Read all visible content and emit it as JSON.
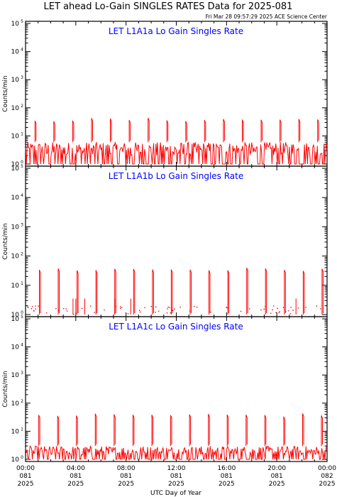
{
  "page": {
    "title": "LET ahead Lo-Gain SINGLES RATES Data for 2025-081",
    "timestamp": "Fri Mar 28 09:57:29 2025 ACE Science Center",
    "xlabel": "UTC Day of Year"
  },
  "colors": {
    "data": "#ff0000",
    "panel_title": "#0000ff",
    "axes": "#000000"
  },
  "chart_data": [
    {
      "type": "line",
      "title": "LET L1A1a Lo Gain Singles Rate",
      "ylabel": "Counts/min",
      "yscale": "log",
      "ylim": [
        1,
        100000
      ],
      "yticks": [
        {
          "base": "10",
          "exp": "0"
        },
        {
          "base": "10",
          "exp": "1"
        },
        {
          "base": "10",
          "exp": "2"
        },
        {
          "base": "10",
          "exp": "3"
        },
        {
          "base": "10",
          "exp": "4"
        },
        {
          "base": "10",
          "exp": "5"
        }
      ],
      "xlim_hours": [
        0,
        24
      ],
      "spike_hours": [
        0.75,
        2.25,
        3.75,
        5.25,
        6.75,
        8.25,
        9.75,
        11.25,
        12.75,
        14.25,
        15.75,
        17.25,
        18.75,
        20.25,
        21.75,
        23.25
      ],
      "spike_value": 38,
      "baseline": "dense",
      "baseline_range": [
        1,
        6
      ]
    },
    {
      "type": "line",
      "title": "LET L1A1b Lo Gain Singles Rate",
      "ylabel": "Counts/min",
      "yscale": "log",
      "ylim": [
        1,
        100000
      ],
      "yticks": [
        {
          "base": "10",
          "exp": "0"
        },
        {
          "base": "10",
          "exp": "1"
        },
        {
          "base": "10",
          "exp": "2"
        },
        {
          "base": "10",
          "exp": "3"
        },
        {
          "base": "10",
          "exp": "4"
        },
        {
          "base": "10",
          "exp": "5"
        }
      ],
      "xlim_hours": [
        0,
        24
      ],
      "spike_hours": [
        1.1,
        2.6,
        4.1,
        5.6,
        7.1,
        8.6,
        10.1,
        11.6,
        13.1,
        14.6,
        16.1,
        17.6,
        19.1,
        20.6,
        22.1,
        23.6
      ],
      "spike_value": 35,
      "baseline": "sparse",
      "baseline_range": [
        1,
        2
      ]
    },
    {
      "type": "line",
      "title": "LET L1A1c Lo Gain Singles Rate",
      "ylabel": "Counts/min",
      "yscale": "log",
      "ylim": [
        1,
        100000
      ],
      "yticks": [
        {
          "base": "10",
          "exp": "0"
        },
        {
          "base": "10",
          "exp": "1"
        },
        {
          "base": "10",
          "exp": "2"
        },
        {
          "base": "10",
          "exp": "3"
        },
        {
          "base": "10",
          "exp": "4"
        },
        {
          "base": "10",
          "exp": "5"
        }
      ],
      "xlim_hours": [
        0,
        24
      ],
      "spike_hours": [
        1.05,
        2.55,
        4.05,
        5.55,
        7.05,
        8.55,
        10.05,
        11.55,
        13.05,
        14.55,
        16.05,
        17.55,
        19.05,
        20.55,
        22.05,
        23.55
      ],
      "spike_value": 38,
      "baseline": "dense",
      "baseline_range": [
        1,
        3
      ]
    }
  ],
  "xaxis": {
    "ticks": [
      {
        "hour": 0,
        "time": "00:00",
        "doy": "081",
        "year": "2025"
      },
      {
        "hour": 4,
        "time": "04:00",
        "doy": "081",
        "year": "2025"
      },
      {
        "hour": 8,
        "time": "08:00",
        "doy": "081",
        "year": "2025"
      },
      {
        "hour": 12,
        "time": "12:00",
        "doy": "081",
        "year": "2025"
      },
      {
        "hour": 16,
        "time": "16:00",
        "doy": "081",
        "year": "2025"
      },
      {
        "hour": 20,
        "time": "20:00",
        "doy": "081",
        "year": "2025"
      },
      {
        "hour": 24,
        "time": "00:00",
        "doy": "082",
        "year": "2025"
      }
    ]
  }
}
